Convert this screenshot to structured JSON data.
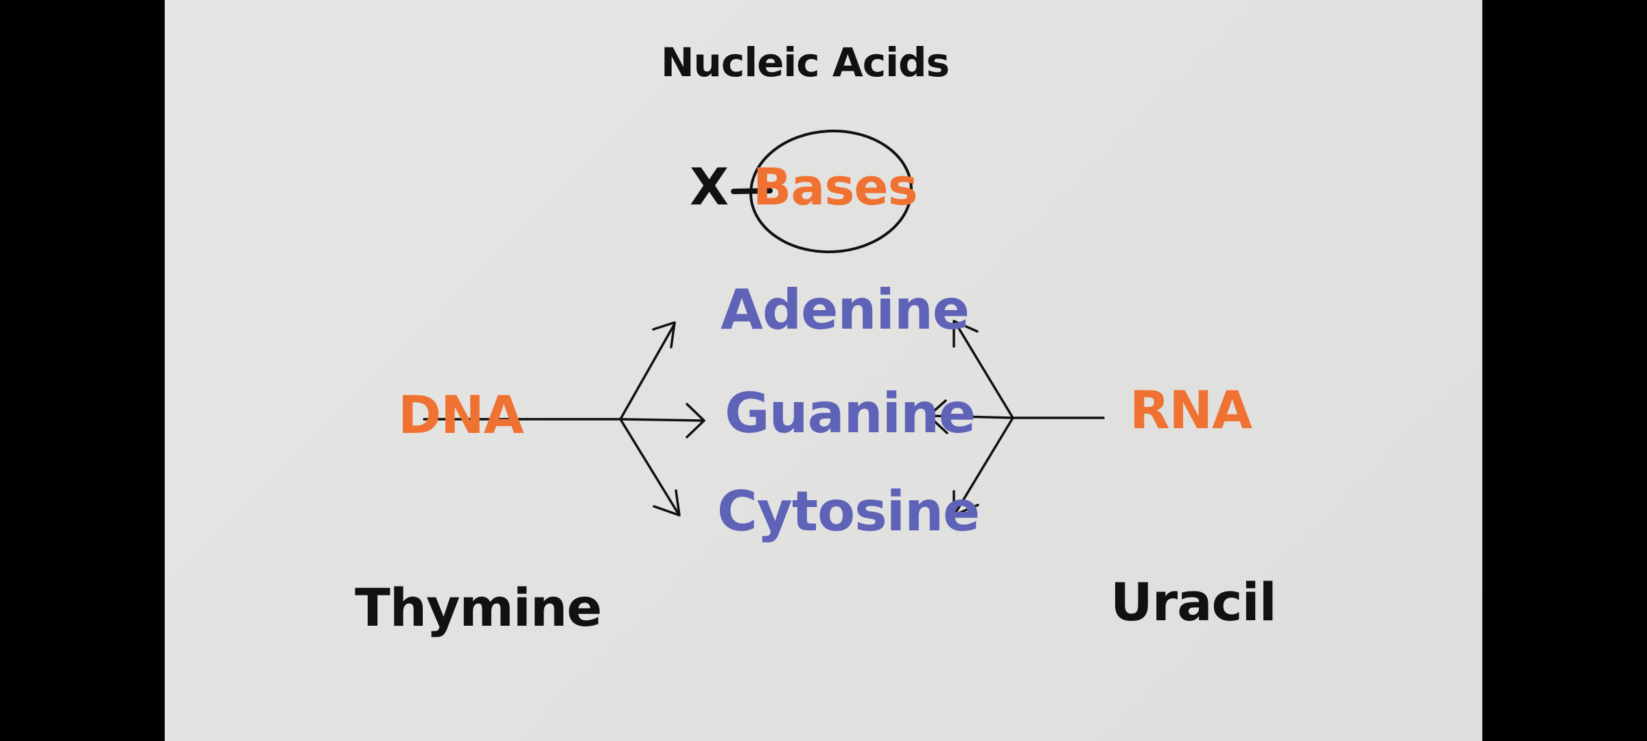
{
  "title": "Nucleic Acids",
  "x_mark": "X",
  "bases_label": "Bases",
  "bases": [
    "Adenine",
    "Guanine",
    "Cytosine"
  ],
  "dna": {
    "label": "DNA",
    "specific_base": "Thymine"
  },
  "rna": {
    "label": "RNA",
    "specific_base": "Uracil"
  },
  "colors": {
    "background": "#e3e3e1",
    "frame": "#000000",
    "orange": "#f07232",
    "purple": "#5f63b8",
    "ink": "#111111"
  }
}
